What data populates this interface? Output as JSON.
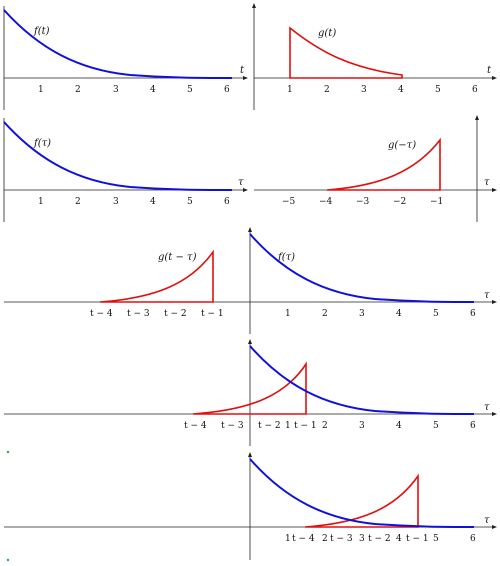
{
  "panels": [
    {
      "id": "p1",
      "fn_label": "f(t)",
      "axis_var": "t",
      "ticks": [
        "1",
        "2",
        "3",
        "4",
        "5",
        "6"
      ],
      "curve": "f"
    },
    {
      "id": "p2",
      "fn_label": "g(t)",
      "axis_var": "t",
      "ticks": [
        "1",
        "2",
        "3",
        "4",
        "5",
        "6"
      ],
      "curve": "g"
    },
    {
      "id": "p3",
      "fn_label": "f(τ)",
      "axis_var": "τ",
      "ticks": [
        "1",
        "2",
        "3",
        "4",
        "5",
        "6"
      ],
      "curve": "f"
    },
    {
      "id": "p4",
      "fn_label": "g(−τ)",
      "axis_var": "τ",
      "ticks": [
        "−5",
        "−4",
        "−3",
        "−2",
        "−1"
      ],
      "curve": "g_reflected"
    },
    {
      "id": "p5",
      "fn_labels": [
        "g(t − τ)",
        "f(τ)"
      ],
      "axis_var": "τ",
      "shift_ticks": [
        "t − 4",
        "t − 3",
        "t − 2",
        "t − 1"
      ],
      "ticks": [
        "1",
        "2",
        "3",
        "4",
        "5",
        "6"
      ]
    },
    {
      "id": "p6",
      "axis_var": "τ",
      "shift_ticks": [
        "t − 4",
        "t − 3",
        "t − 2",
        "t − 1"
      ],
      "ticks": [
        "1",
        "2",
        "3",
        "4",
        "5",
        "6"
      ]
    },
    {
      "id": "p7",
      "axis_var": "τ",
      "shift_ticks": [
        "t − 4",
        "t − 3",
        "t − 2",
        "t − 1"
      ],
      "ticks": [
        "1",
        "2",
        "3",
        "4",
        "5",
        "6"
      ]
    }
  ],
  "functions": {
    "f": "e^(-t)",
    "g": "e^(-t) on [1, 4]"
  },
  "colors": {
    "f_curve": "#1010dd",
    "g_curve": "#e01010",
    "axes": "#222222"
  }
}
